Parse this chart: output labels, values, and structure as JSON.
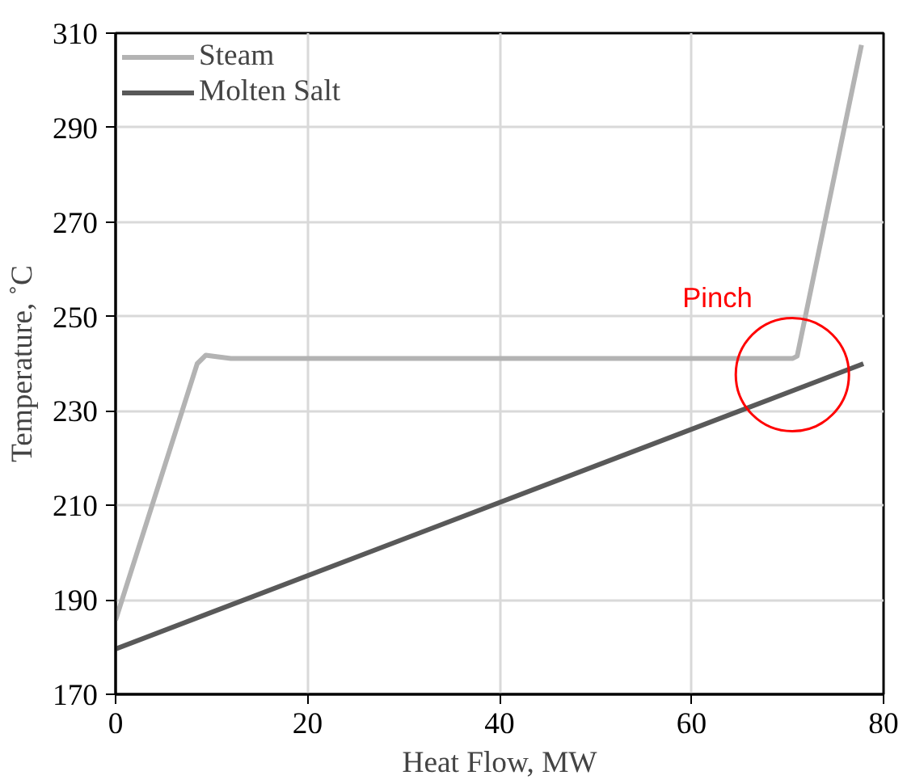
{
  "chart_data": {
    "type": "line",
    "xlabel": "Heat Flow, MW",
    "ylabel": "Temperature, ˚C",
    "xlim": [
      0,
      80
    ],
    "xticks": [
      0,
      20,
      40,
      60,
      80
    ],
    "ylim": [
      170,
      310
    ],
    "yticks": [
      170,
      190,
      210,
      230,
      250,
      270,
      290,
      310
    ],
    "grid": true,
    "legend": "top left",
    "line_style": "solid",
    "marker": "none",
    "series": [
      {
        "name": "Steam",
        "color": "#b3b3b3",
        "x": [
          0,
          8.5,
          9.4,
          10.5,
          12,
          70.5,
          71,
          77.7
        ],
        "values": [
          185.7,
          240,
          241.8,
          241.5,
          241.1,
          241.1,
          241.6,
          307.5
        ]
      },
      {
        "name": "Molten Salt",
        "color": "#595959",
        "x": [
          0,
          77.9
        ],
        "values": [
          179.6,
          240
        ]
      }
    ],
    "annotations": [
      "Pinch"
    ]
  }
}
